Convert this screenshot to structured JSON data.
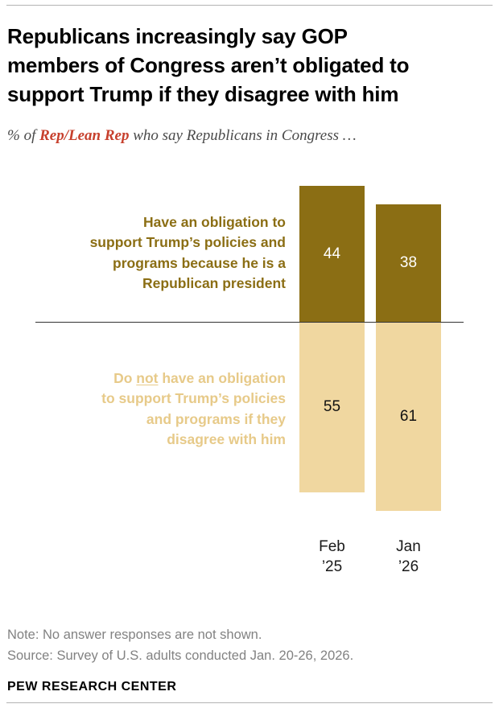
{
  "header": {
    "title": "Republicans increasingly say GOP\nmembers of Congress aren’t obligated to\nsupport Trump if they disagree with him",
    "subtitle_prefix": "% of ",
    "subtitle_emphasis": "Rep/Lean Rep",
    "subtitle_suffix": " who say Republicans in Congress …"
  },
  "chart_data": {
    "type": "bar",
    "variant": "diverging-stacked-column",
    "title": "Republicans increasingly say GOP members of Congress aren’t obligated to support Trump if they disagree with him",
    "subtitle": "% of Rep/Lean Rep who say Republicans in Congress …",
    "categories": [
      "Feb\n’25",
      "Jan\n’26"
    ],
    "series": [
      {
        "name": "Have an obligation to support Trump’s policies and programs because he is a Republican president",
        "values": [
          44,
          38
        ],
        "direction": "up",
        "color": "#8b6e14",
        "label_color": "#8b6e14",
        "value_label_color": "#ffffff"
      },
      {
        "name": "Do not have an obligation to support Trump’s policies and programs if they disagree with him",
        "values": [
          55,
          61
        ],
        "direction": "down",
        "color": "#f0d7a0",
        "label_color": "#e7ca89",
        "value_label_color": "#111111"
      }
    ],
    "grid": false,
    "legend_position": "left-of-bars",
    "baseline_between_series": true,
    "ylim": [
      0,
      65
    ]
  },
  "labels": {
    "series_top": "Have an obligation to\nsupport Trump’s policies and\nprograms because he is a\nRepublican president",
    "series_bottom_pre": "Do ",
    "series_bottom_underlined": "not",
    "series_bottom_rest": " have an obligation\nto support Trump’s policies\nand programs if they\ndisagree with him"
  },
  "footer": {
    "note": "Note: No answer responses are not shown.",
    "source": "Source: Survey of U.S. adults conducted Jan. 20-26, 2026.",
    "brand": "PEW RESEARCH CENTER"
  },
  "colors": {
    "accent_dark_gold": "#8b6e14",
    "accent_tan": "#f0d7a0",
    "emphasis_red": "#c7402d",
    "muted_text": "#828282"
  }
}
